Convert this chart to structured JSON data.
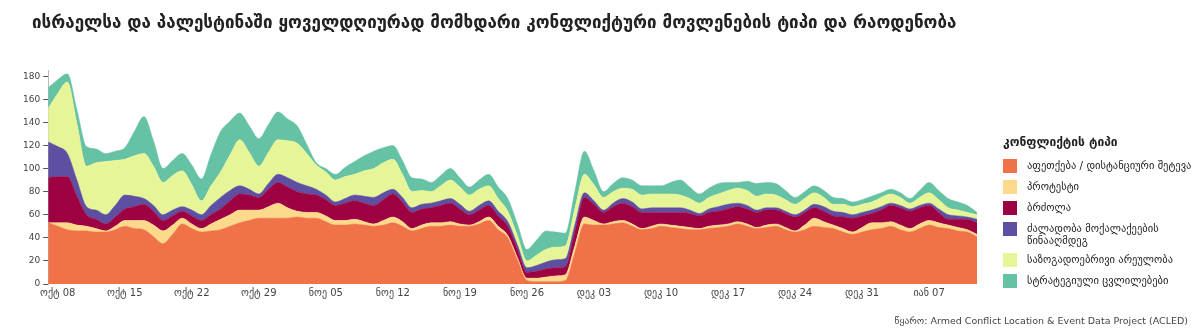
{
  "chart_data": {
    "type": "area",
    "title": "ისრაელსა და პალესტინაში ყოველდღიურად მომხდარი კონფლიქტური მოვლენების ტიპი და რაოდენობა",
    "legend_title": "კონფლიქტის ტიპი",
    "legend": "right",
    "stacked": true,
    "annotations": [
      "წყარო: Armed Conflict Location & Event Data Project (ACLED)"
    ],
    "categories": [
      null,
      "ოქტ 08",
      null,
      null,
      null,
      null,
      null,
      null,
      "ოქტ 15",
      null,
      null,
      null,
      null,
      null,
      null,
      "ოქტ 22",
      null,
      null,
      null,
      null,
      null,
      null,
      "ოქტ 29",
      null,
      null,
      null,
      null,
      null,
      null,
      "ნოე 05",
      null,
      null,
      null,
      null,
      null,
      null,
      "ნოე 12",
      null,
      null,
      null,
      null,
      null,
      null,
      "ნოე 19",
      null,
      null,
      null,
      null,
      null,
      null,
      "ნოე 26",
      null,
      null,
      null,
      null,
      null,
      null,
      "დეკ 03",
      null,
      null,
      null,
      null,
      null,
      null,
      "დეკ 10",
      null,
      null,
      null,
      null,
      null,
      null,
      "დეკ 17",
      null,
      null,
      null,
      null,
      null,
      null,
      "დეკ 24",
      null,
      null,
      null,
      null,
      null,
      null,
      "დეკ 31",
      null,
      null,
      null,
      null,
      null,
      null,
      "იან 07",
      null,
      null,
      null,
      null,
      null
    ],
    "ylim": [
      0,
      185
    ],
    "yticks": [
      0,
      20,
      40,
      60,
      80,
      100,
      120,
      140,
      160,
      180
    ],
    "series": [
      {
        "name": "აფეთქება / დისტანციური შეტევა",
        "color": "#f07249",
        "values": [
          53,
          50,
          47,
          46,
          46,
          45,
          45,
          47,
          50,
          48,
          47,
          41,
          35,
          43,
          52,
          48,
          45,
          46,
          47,
          50,
          53,
          55,
          57,
          57,
          57,
          57,
          58,
          57,
          57,
          54,
          51,
          51,
          52,
          51,
          50,
          51,
          53,
          50,
          46,
          48,
          50,
          50,
          51,
          50,
          50,
          52,
          55,
          47,
          40,
          21,
          3,
          2,
          2,
          2,
          3,
          27,
          52,
          51,
          51,
          52,
          53,
          50,
          47,
          48,
          50,
          49,
          48,
          47,
          47,
          48,
          49,
          50,
          52,
          50,
          48,
          49,
          50,
          47,
          45,
          47,
          50,
          49,
          48,
          45,
          43,
          45,
          47,
          48,
          50,
          47,
          45,
          48,
          51,
          49,
          48,
          46,
          45,
          41
        ]
      },
      {
        "name": "პროტესტი",
        "color": "#fdd98b",
        "values": [
          0,
          3,
          6,
          5,
          4,
          3,
          1,
          3,
          5,
          7,
          8,
          10,
          11,
          8,
          5,
          4,
          3,
          6,
          9,
          10,
          11,
          9,
          7,
          10,
          13,
          9,
          5,
          5,
          5,
          5,
          4,
          4,
          4,
          3,
          2,
          4,
          5,
          4,
          2,
          3,
          3,
          3,
          3,
          2,
          1,
          2,
          3,
          3,
          2,
          2,
          2,
          3,
          4,
          5,
          5,
          6,
          6,
          4,
          1,
          2,
          2,
          2,
          1,
          2,
          2,
          2,
          2,
          2,
          1,
          2,
          2,
          2,
          2,
          2,
          1,
          2,
          2,
          2,
          1,
          4,
          7,
          5,
          3,
          3,
          2,
          4,
          6,
          5,
          4,
          4,
          3,
          4,
          4,
          4,
          3,
          3,
          2,
          2
        ]
      },
      {
        "name": "ბრძოლა",
        "color": "#9e0142",
        "values": [
          39,
          40,
          40,
          25,
          10,
          8,
          6,
          8,
          10,
          12,
          14,
          12,
          9,
          8,
          6,
          7,
          7,
          8,
          9,
          12,
          14,
          13,
          11,
          15,
          18,
          18,
          17,
          16,
          15,
          14,
          13,
          15,
          16,
          16,
          16,
          18,
          20,
          17,
          14,
          14,
          13,
          15,
          16,
          13,
          9,
          10,
          10,
          9,
          8,
          7,
          5,
          6,
          7,
          7,
          7,
          12,
          17,
          14,
          10,
          13,
          15,
          15,
          14,
          12,
          10,
          11,
          12,
          12,
          11,
          12,
          12,
          13,
          13,
          13,
          13,
          13,
          12,
          12,
          12,
          11,
          9,
          9,
          8,
          10,
          12,
          10,
          8,
          11,
          14,
          15,
          15,
          14,
          13,
          9,
          5,
          7,
          9,
          10
        ]
      },
      {
        "name": "ძალადობა მოქალაქეების წინააღმდეგ",
        "color": "#5e4fa2",
        "values": [
          31,
          26,
          20,
          14,
          7,
          8,
          8,
          10,
          12,
          9,
          5,
          5,
          5,
          5,
          4,
          5,
          5,
          8,
          10,
          9,
          7,
          5,
          3,
          5,
          7,
          8,
          8,
          7,
          5,
          4,
          3,
          4,
          5,
          6,
          7,
          6,
          4,
          4,
          4,
          4,
          4,
          4,
          4,
          4,
          3,
          4,
          4,
          4,
          4,
          4,
          4,
          5,
          6,
          7,
          7,
          6,
          4,
          3,
          2,
          3,
          4,
          4,
          3,
          4,
          4,
          4,
          4,
          3,
          2,
          3,
          4,
          4,
          3,
          3,
          2,
          2,
          2,
          2,
          2,
          2,
          3,
          4,
          4,
          4,
          3,
          3,
          3,
          3,
          2,
          2,
          2,
          2,
          2,
          3,
          4,
          3,
          2,
          3
        ]
      },
      {
        "name": "საზოგადოებრივი არეულობა",
        "color": "#e6f598",
        "values": [
          29,
          46,
          62,
          49,
          35,
          41,
          46,
          39,
          31,
          35,
          39,
          34,
          28,
          30,
          31,
          22,
          12,
          17,
          22,
          31,
          40,
          32,
          24,
          27,
          30,
          32,
          34,
          28,
          21,
          20,
          19,
          19,
          18,
          22,
          25,
          26,
          26,
          20,
          14,
          12,
          10,
          13,
          16,
          15,
          14,
          14,
          13,
          11,
          9,
          8,
          6,
          9,
          11,
          11,
          11,
          14,
          16,
          14,
          11,
          10,
          9,
          11,
          12,
          12,
          12,
          12,
          11,
          10,
          9,
          10,
          11,
          12,
          13,
          13,
          12,
          12,
          11,
          10,
          9,
          10,
          10,
          8,
          6,
          7,
          7,
          7,
          7,
          8,
          8,
          7,
          5,
          7,
          9,
          8,
          6,
          5,
          4,
          4
        ]
      },
      {
        "name": "სტრატეგიული ცვლილებები",
        "color": "#66c2a5",
        "values": [
          18,
          12,
          7,
          12,
          17,
          12,
          7,
          8,
          10,
          21,
          32,
          22,
          12,
          13,
          15,
          17,
          19,
          27,
          35,
          29,
          23,
          23,
          24,
          24,
          24,
          19,
          15,
          8,
          2,
          3,
          5,
          8,
          11,
          13,
          15,
          13,
          12,
          12,
          12,
          10,
          8,
          9,
          10,
          8,
          7,
          8,
          10,
          10,
          11,
          10,
          10,
          13,
          16,
          13,
          11,
          15,
          20,
          12,
          5,
          7,
          9,
          8,
          8,
          7,
          7,
          10,
          13,
          10,
          8,
          8,
          9,
          7,
          5,
          8,
          11,
          10,
          10,
          8,
          6,
          6,
          6,
          6,
          6,
          5,
          4,
          4,
          5,
          4,
          4,
          4,
          4,
          6,
          9,
          8,
          8,
          7,
          6,
          2
        ]
      }
    ]
  }
}
